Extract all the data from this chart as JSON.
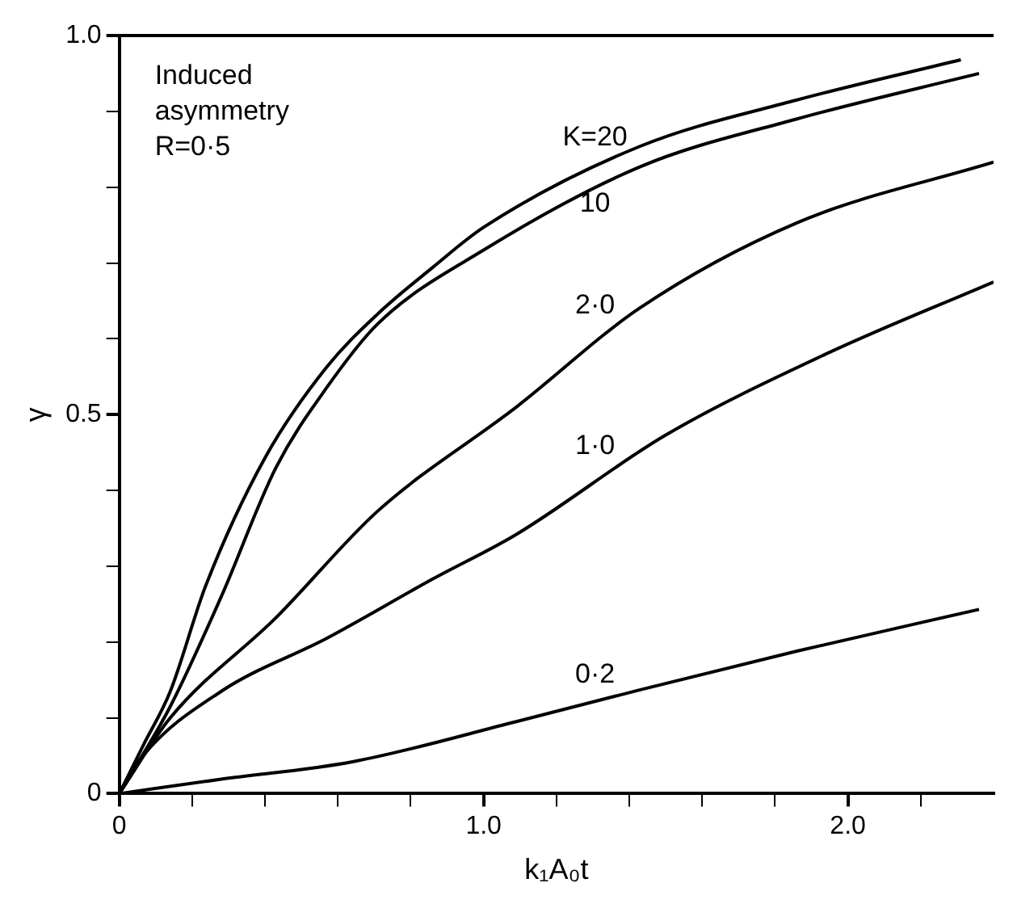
{
  "chart_data": {
    "type": "line",
    "xlabel": "k₁A₀t",
    "ylabel": "γ",
    "xlim": [
      0,
      2.4
    ],
    "ylim": [
      0,
      1
    ],
    "xticks": [
      {
        "value": 0,
        "label": "0"
      },
      {
        "value": 0.2,
        "label": null
      },
      {
        "value": 0.4,
        "label": null
      },
      {
        "value": 0.6,
        "label": null
      },
      {
        "value": 0.8,
        "label": null
      },
      {
        "value": 1,
        "label": "1.0"
      },
      {
        "value": 1.2,
        "label": null
      },
      {
        "value": 1.4,
        "label": null
      },
      {
        "value": 1.6,
        "label": null
      },
      {
        "value": 1.8,
        "label": null
      },
      {
        "value": 2,
        "label": "2.0"
      },
      {
        "value": 2.2,
        "label": null
      }
    ],
    "yticks": [
      {
        "value": 0,
        "label": "0"
      },
      {
        "value": 0.1,
        "label": null
      },
      {
        "value": 0.2,
        "label": null
      },
      {
        "value": 0.3,
        "label": null
      },
      {
        "value": 0.4,
        "label": null
      },
      {
        "value": 0.5,
        "label": "0.5"
      },
      {
        "value": 0.6,
        "label": null
      },
      {
        "value": 0.7,
        "label": null
      },
      {
        "value": 0.8,
        "label": null
      },
      {
        "value": 0.9,
        "label": null
      },
      {
        "value": 1,
        "label": "1.0"
      }
    ],
    "grid": false,
    "legend": false,
    "marker": "none",
    "line_style": "solid",
    "series": [
      {
        "name": "K=20",
        "color": "#000000",
        "x": [
          0,
          0.065,
          0.14,
          0.237,
          0.4,
          0.57,
          0.71,
          0.86,
          1.0,
          1.43,
          1.86,
          2.31
        ],
        "values": [
          0,
          0.063,
          0.135,
          0.274,
          0.443,
          0.563,
          0.633,
          0.694,
          0.747,
          0.854,
          0.915,
          0.968
        ]
      },
      {
        "name": "10",
        "color": "#000000",
        "x": [
          0,
          0.14,
          0.28,
          0.43,
          0.57,
          0.71,
          1.0,
          1.43,
          1.86,
          2.36
        ],
        "values": [
          0,
          0.115,
          0.26,
          0.43,
          0.536,
          0.62,
          0.717,
          0.827,
          0.89,
          0.95
        ]
      },
      {
        "name": "2·0",
        "color": "#000000",
        "x": [
          0,
          0.14,
          0.43,
          0.71,
          1.09,
          1.43,
          1.86,
          2.4
        ],
        "values": [
          0,
          0.1,
          0.232,
          0.373,
          0.51,
          0.641,
          0.753,
          0.833
        ]
      },
      {
        "name": "1·0",
        "color": "#000000",
        "x": [
          0,
          0.065,
          0.28,
          0.57,
          0.86,
          1.09,
          1.5,
          1.94,
          2.4
        ],
        "values": [
          0,
          0.05,
          0.135,
          0.205,
          0.283,
          0.342,
          0.473,
          0.58,
          0.675
        ]
      },
      {
        "name": "0·2",
        "color": "#000000",
        "x": [
          0,
          0.28,
          0.64,
          1.09,
          1.43,
          1.86,
          2.36
        ],
        "values": [
          0,
          0.019,
          0.042,
          0.095,
          0.137,
          0.188,
          0.243
        ]
      }
    ],
    "annotations": [
      "Induced asymmetry R=0·5"
    ]
  }
}
